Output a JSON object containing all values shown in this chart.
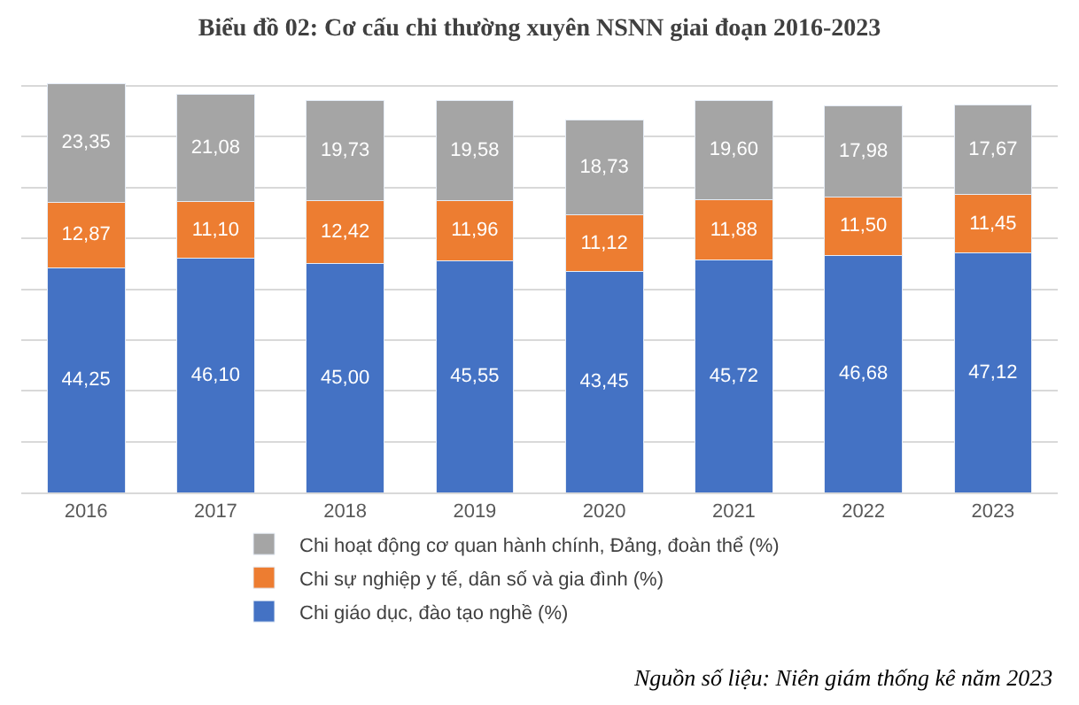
{
  "chart_data": {
    "type": "bar",
    "stacked": true,
    "title": "Biểu đồ 02: Cơ cấu chi thường xuyên NSNN giai đoạn 2016-2023",
    "categories": [
      "2016",
      "2017",
      "2018",
      "2019",
      "2020",
      "2021",
      "2022",
      "2023"
    ],
    "series": [
      {
        "name": "Chi giáo dục, đào tạo nghề (%)",
        "color": "#4472c4",
        "values": [
          44.25,
          46.1,
          45.0,
          45.55,
          43.45,
          45.72,
          46.68,
          47.12
        ],
        "value_labels": [
          "44,25",
          "46,10",
          "45,00",
          "45,55",
          "43,45",
          "45,72",
          "46,68",
          "47,12"
        ]
      },
      {
        "name": "Chi sự nghiệp y tế, dân số và gia đình (%)",
        "color": "#ed7d31",
        "values": [
          12.87,
          11.1,
          12.42,
          11.96,
          11.12,
          11.88,
          11.5,
          11.45
        ],
        "value_labels": [
          "12,87",
          "11,10",
          "12,42",
          "11,96",
          "11,12",
          "11,88",
          "11,50",
          "11,45"
        ]
      },
      {
        "name": "Chi hoạt động cơ quan hành chính, Đảng, đoàn thể (%)",
        "color": "#a5a5a5",
        "values": [
          23.35,
          21.08,
          19.73,
          19.58,
          18.73,
          19.6,
          17.98,
          17.67
        ],
        "value_labels": [
          "23,35",
          "21,08",
          "19,73",
          "19,58",
          "18,73",
          "19,60",
          "17,98",
          "17,67"
        ]
      }
    ],
    "tick_labels": "x",
    "grid": "y",
    "legend": "bottom",
    "annotations": [
      "Nguồn số liệu: Niên giám thống kê năm 2023"
    ]
  }
}
